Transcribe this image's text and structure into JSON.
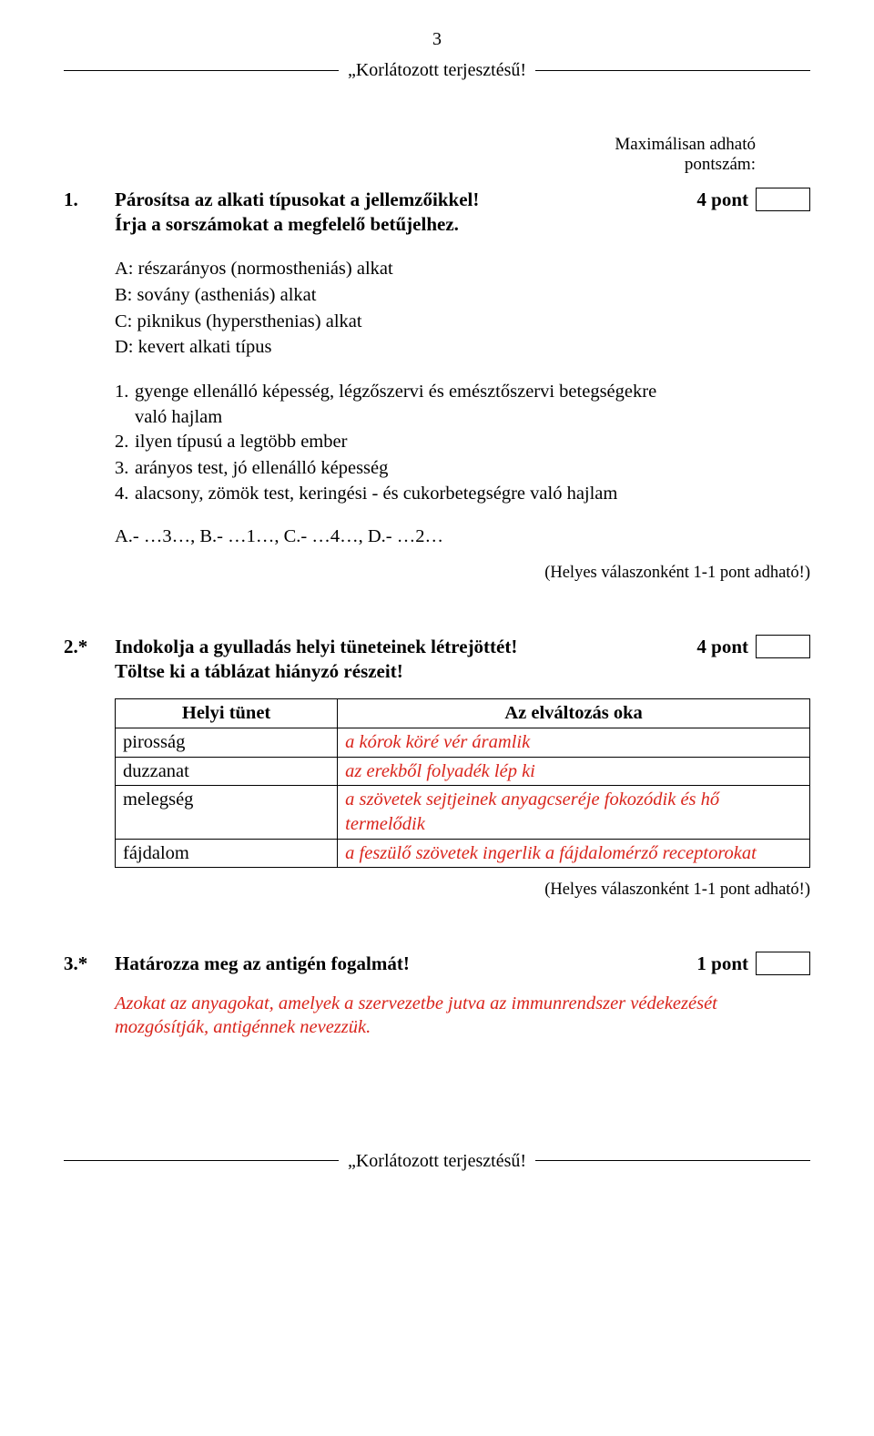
{
  "page_number": "3",
  "classification": "„Korlátozott terjesztésű!",
  "max_caption_l1": "Maximálisan adható",
  "max_caption_l2": "pontszám:",
  "q1": {
    "num": "1.",
    "title_l1": "Párosítsa az alkati típusokat a jellemzőikkel!",
    "title_l2": "Írja a sorszámokat a megfelelő betűjelhez.",
    "score": "4 pont",
    "types": {
      "a": "A: részarányos (normostheniás) alkat",
      "b": "B: sovány (astheniás) alkat",
      "c": "C: piknikus (hypersthenias) alkat",
      "d": "D: kevert alkati típus"
    },
    "items": {
      "n1": "1.",
      "t1a": "gyenge ellenálló képesség, légzőszervi és emésztőszervi betegségekre",
      "t1b": "való hajlam",
      "n2": "2.",
      "t2": "ilyen típusú a legtöbb ember",
      "n3": "3.",
      "t3": "arányos test, jó ellenálló képesség",
      "n4": "4.",
      "t4": "alacsony, zömök test, keringési - és cukorbetegségre való hajlam"
    },
    "match": "A.- …3…, B.- …1…, C.- …4…, D.- …2…",
    "note": "(Helyes válaszonként 1-1 pont adható!)"
  },
  "q2": {
    "num": "2.*",
    "title_l1": "Indokolja a gyulladás helyi tüneteinek létrejöttét!",
    "title_l2": "Töltse ki a táblázat hiányzó részeit!",
    "score": "4 pont",
    "th1": "Helyi tünet",
    "th2": "Az elváltozás oka",
    "rows": {
      "r1c1": "pirosság",
      "r1c2": "a kórok köré vér áramlik",
      "r2c1": "duzzanat",
      "r2c2": "az erekből folyadék lép ki",
      "r3c1": "melegség",
      "r3c2": "a szövetek sejtjeinek anyagcseréje fokozódik és hő termelődik",
      "r4c1": "fájdalom",
      "r4c2": "a feszülő szövetek ingerlik a fájdalomérző receptorokat"
    },
    "note": "(Helyes válaszonként 1-1 pont adható!)"
  },
  "q3": {
    "num": "3.*",
    "title": "Határozza meg az antigén fogalmát!",
    "score": "1 pont",
    "answer": "Azokat az anyagokat, amelyek a szervezetbe jutva az immunrendszer védekezését mozgósítják, antigénnek nevezzük."
  },
  "footer": "„Korlátozott terjesztésű!"
}
